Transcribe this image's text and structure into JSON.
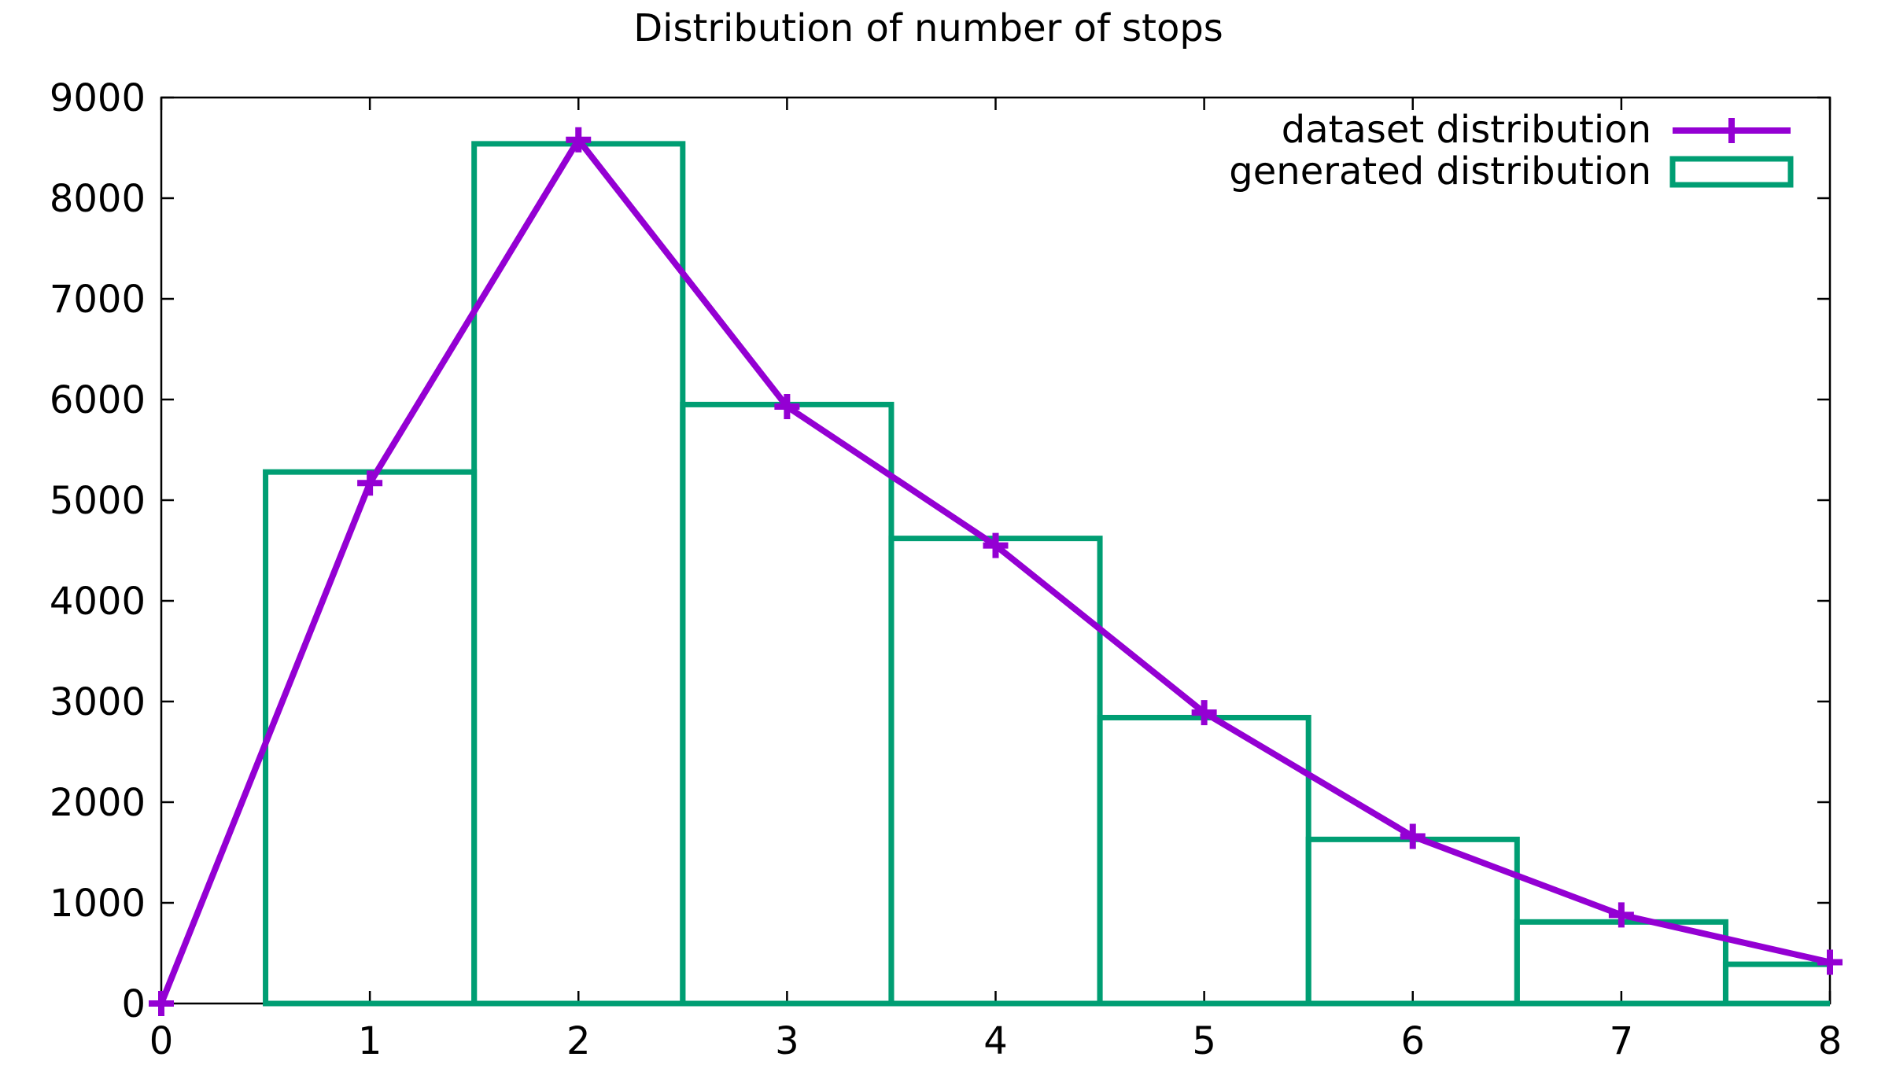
{
  "title": "Distribution of number of stops",
  "legend": {
    "position": "top-right",
    "entries": [
      {
        "label": "dataset distribution",
        "swatch": "line-with-plus-marker",
        "color": "#9400d3"
      },
      {
        "label": "generated distribution",
        "swatch": "box-outline",
        "color": "#009e73"
      }
    ]
  },
  "colors": {
    "dataset_line": "#9400d3",
    "generated_box": "#009e73",
    "axis": "#000000",
    "background": "#ffffff"
  },
  "chart_data": {
    "type": "combo",
    "title": "Distribution of number of stops",
    "xlabel": "",
    "ylabel": "",
    "xlim": [
      0,
      8
    ],
    "ylim": [
      0,
      9000
    ],
    "xticks": [
      0,
      1,
      2,
      3,
      4,
      5,
      6,
      7,
      8
    ],
    "yticks": [
      0,
      1000,
      2000,
      3000,
      4000,
      5000,
      6000,
      7000,
      8000,
      9000
    ],
    "grid": false,
    "ticks_mirrored_on_border": true,
    "legend_position": "top-right",
    "series": [
      {
        "name": "dataset distribution",
        "type": "line",
        "marker": "plus",
        "color": "#9400d3",
        "x": [
          0,
          1,
          2,
          3,
          4,
          5,
          6,
          7,
          8
        ],
        "values": [
          0,
          5170,
          8580,
          5930,
          4550,
          2890,
          1660,
          880,
          410
        ]
      },
      {
        "name": "generated distribution",
        "type": "bar",
        "style": "outline",
        "color": "#009e73",
        "bin_centers": [
          1,
          2,
          3,
          4,
          5,
          6,
          7,
          8
        ],
        "bin_width": 1,
        "clipped_to_xlim": true,
        "values": [
          5280,
          8540,
          5950,
          4620,
          2840,
          1630,
          810,
          390
        ]
      }
    ]
  }
}
